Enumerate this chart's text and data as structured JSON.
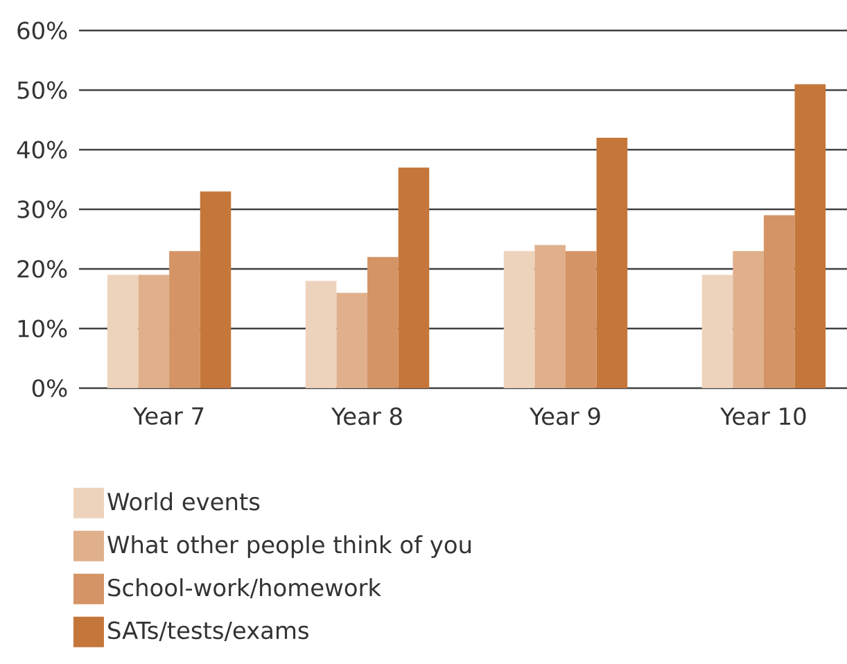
{
  "chart_data": {
    "type": "bar",
    "categories": [
      "Year 7",
      "Year 8",
      "Year 9",
      "Year 10"
    ],
    "series": [
      {
        "name": "World events",
        "color": "#eed3bc",
        "values": [
          19,
          18,
          23,
          19
        ]
      },
      {
        "name": "What other people think of you",
        "color": "#e0b08c",
        "values": [
          19,
          16,
          24,
          23
        ]
      },
      {
        "name": "School-work/homework",
        "color": "#d49466",
        "values": [
          23,
          22,
          23,
          29
        ]
      },
      {
        "name": "SATs/tests/exams",
        "color": "#c5773b",
        "values": [
          33,
          37,
          42,
          51
        ]
      }
    ],
    "ylim": [
      0,
      60
    ],
    "yticks": [
      {
        "value": 0,
        "label": "0%"
      },
      {
        "value": 10,
        "label": "10%"
      },
      {
        "value": 20,
        "label": "20%"
      },
      {
        "value": 30,
        "label": "30%"
      },
      {
        "value": 40,
        "label": "40%"
      },
      {
        "value": 50,
        "label": "50%"
      },
      {
        "value": 60,
        "label": "60%"
      }
    ],
    "grid": "y",
    "legend": "bottom"
  }
}
